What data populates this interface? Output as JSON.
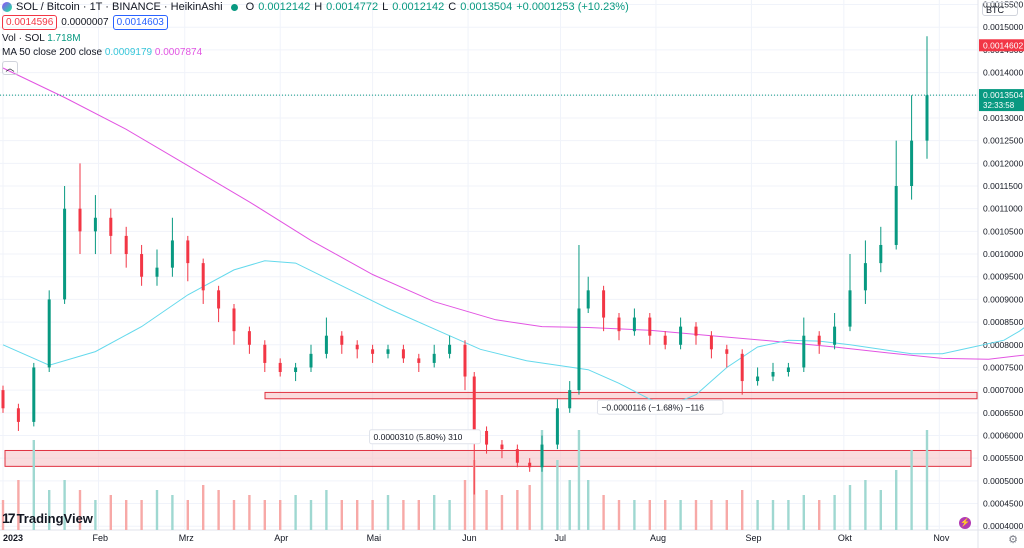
{
  "header": {
    "symbol": "SOL / Bitcoin · 1T · BINANCE · HeikinAshi",
    "O": "O",
    "o_val": "0.0012142",
    "H": "H",
    "h_val": "0.0014772",
    "L": "L",
    "l_val": "0.0012142",
    "C": "C",
    "c_val": "0.0013504",
    "change": "+0.0001253 (+10.23%)"
  },
  "quote": {
    "bid": "0.0014596",
    "spread": "0.0000007",
    "ask": "0.0014603"
  },
  "volume": {
    "label": "Vol · SOL",
    "value": "1.718M"
  },
  "ma": {
    "label": "MA 50 close 200 close",
    "ma50": "0.0009179",
    "ma200": "0.0007874"
  },
  "collapse_icon": "chevron-up-icon",
  "currency_button": "BTC",
  "logo_text": "TradingView",
  "colors": {
    "up": "#089981",
    "down": "#f23645",
    "ma50": "#64d9ec",
    "ma200": "#e254e2",
    "vol_up": "#9fd8d1",
    "vol_down": "#f7a9a7",
    "zone_fill": "#f6c3c6",
    "zone_line": "#e0303f"
  },
  "chart_data": {
    "type": "candlestick",
    "title": "SOL / Bitcoin · 1T · BINANCE · HeikinAshi",
    "y_axis": {
      "ticks": [
        "0.0015500",
        "0.0015000",
        "0.0014500",
        "0.0014000",
        "0.0013500",
        "0.0013000",
        "0.0012500",
        "0.0012000",
        "0.0011500",
        "0.0011000",
        "0.0010500",
        "0.0010000",
        "0.0009500",
        "0.0009000",
        "0.0008500",
        "0.0008000",
        "0.0007500",
        "0.0007000",
        "0.0006500",
        "0.0006000",
        "0.0005500",
        "0.0005000",
        "0.0004500",
        "0.0004000"
      ],
      "ylim": [
        0.0003917,
        0.00156
      ]
    },
    "x_axis": {
      "ticks": [
        "2023",
        "Feb",
        "Mrz",
        "Apr",
        "Mai",
        "Jun",
        "Jul",
        "Aug",
        "Sep",
        "Okt",
        "Nov"
      ],
      "xlim": [
        "2022-12-31",
        "2023-11-13"
      ]
    },
    "price_labels": [
      {
        "value": "0.0014602",
        "color": "#f23645"
      },
      {
        "value": "0.0013504",
        "sub": "32:33:58",
        "color": "#089981"
      }
    ],
    "last_price": 0.0013504,
    "ma50_points": [
      [
        0,
        0.0008
      ],
      [
        15,
        0.000755
      ],
      [
        30,
        0.000785
      ],
      [
        45,
        0.00084
      ],
      [
        60,
        0.00091
      ],
      [
        75,
        0.000965
      ],
      [
        85,
        0.000985
      ],
      [
        95,
        0.00098
      ],
      [
        110,
        0.00093
      ],
      [
        125,
        0.00088
      ],
      [
        140,
        0.000835
      ],
      [
        155,
        0.00079
      ],
      [
        170,
        0.000765
      ],
      [
        180,
        0.000755
      ],
      [
        190,
        0.000745
      ],
      [
        200,
        0.000715
      ],
      [
        210,
        0.00068
      ],
      [
        216,
        0.000665
      ],
      [
        225,
        0.00069
      ],
      [
        235,
        0.00075
      ],
      [
        245,
        0.000795
      ],
      [
        255,
        0.00081
      ],
      [
        265,
        0.000808
      ],
      [
        275,
        0.0008
      ],
      [
        285,
        0.00079
      ],
      [
        295,
        0.00078
      ],
      [
        305,
        0.00078
      ],
      [
        315,
        0.000795
      ],
      [
        325,
        0.00081
      ],
      [
        330,
        0.00083
      ],
      [
        336,
        0.00086
      ],
      [
        340,
        0.000895
      ],
      [
        344,
        0.000918
      ]
    ],
    "ma200_points": [
      [
        0,
        0.00141
      ],
      [
        20,
        0.001345
      ],
      [
        40,
        0.001275
      ],
      [
        60,
        0.001195
      ],
      [
        80,
        0.001115
      ],
      [
        100,
        0.00103
      ],
      [
        120,
        0.000955
      ],
      [
        140,
        0.000895
      ],
      [
        160,
        0.000855
      ],
      [
        175,
        0.00084
      ],
      [
        190,
        0.000838
      ],
      [
        210,
        0.000832
      ],
      [
        230,
        0.00082
      ],
      [
        250,
        0.000808
      ],
      [
        270,
        0.000795
      ],
      [
        290,
        0.00078
      ],
      [
        305,
        0.00077
      ],
      [
        320,
        0.000768
      ],
      [
        335,
        0.00078
      ],
      [
        344,
        0.000787
      ]
    ],
    "candles": [
      [
        0,
        0.0007,
        0.00066,
        0.00071,
        0.00065
      ],
      [
        5,
        0.00066,
        0.00063,
        0.00067,
        0.00061
      ],
      [
        10,
        0.00063,
        0.00075,
        0.00076,
        0.00062
      ],
      [
        15,
        0.00075,
        0.0009,
        0.00092,
        0.00074
      ],
      [
        20,
        0.0009,
        0.0011,
        0.00115,
        0.00089
      ],
      [
        25,
        0.0011,
        0.00105,
        0.0012,
        0.001
      ],
      [
        30,
        0.00105,
        0.00108,
        0.00113,
        0.001
      ],
      [
        35,
        0.00108,
        0.00104,
        0.0011,
        0.001
      ],
      [
        40,
        0.00104,
        0.001,
        0.00106,
        0.00097
      ],
      [
        45,
        0.001,
        0.00095,
        0.00102,
        0.00093
      ],
      [
        50,
        0.00095,
        0.00097,
        0.00101,
        0.00093
      ],
      [
        55,
        0.00097,
        0.00103,
        0.00108,
        0.00095
      ],
      [
        60,
        0.00103,
        0.00098,
        0.00104,
        0.00094
      ],
      [
        65,
        0.00098,
        0.00092,
        0.00099,
        0.00089
      ],
      [
        70,
        0.00092,
        0.00088,
        0.00093,
        0.00085
      ],
      [
        75,
        0.00088,
        0.00083,
        0.00089,
        0.0008
      ],
      [
        80,
        0.00083,
        0.0008,
        0.00084,
        0.00078
      ],
      [
        85,
        0.0008,
        0.00076,
        0.00081,
        0.00074
      ],
      [
        90,
        0.00076,
        0.00074,
        0.00077,
        0.00073
      ],
      [
        95,
        0.00074,
        0.00075,
        0.00076,
        0.00072
      ],
      [
        100,
        0.00075,
        0.00078,
        0.0008,
        0.00074
      ],
      [
        105,
        0.00078,
        0.00082,
        0.00086,
        0.00077
      ],
      [
        110,
        0.00082,
        0.0008,
        0.00083,
        0.00078
      ],
      [
        115,
        0.0008,
        0.00079,
        0.00081,
        0.00077
      ],
      [
        120,
        0.00079,
        0.00078,
        0.0008,
        0.00076
      ],
      [
        125,
        0.00078,
        0.00079,
        0.0008,
        0.00077
      ],
      [
        130,
        0.00079,
        0.00077,
        0.0008,
        0.00076
      ],
      [
        135,
        0.00077,
        0.00076,
        0.00078,
        0.00074
      ],
      [
        140,
        0.00076,
        0.00078,
        0.0008,
        0.00075
      ],
      [
        145,
        0.00078,
        0.0008,
        0.00082,
        0.00077
      ],
      [
        150,
        0.0008,
        0.00073,
        0.00081,
        0.0007
      ],
      [
        153,
        0.00073,
        0.00061,
        0.00074,
        0.00047
      ],
      [
        157,
        0.00061,
        0.00058,
        0.00062,
        0.00056
      ],
      [
        162,
        0.00058,
        0.00057,
        0.00059,
        0.00055
      ],
      [
        167,
        0.00057,
        0.00054,
        0.00058,
        0.00053
      ],
      [
        171,
        0.00054,
        0.00053,
        0.00055,
        0.00052
      ],
      [
        175,
        0.00053,
        0.00058,
        0.0006,
        0.00052
      ],
      [
        180,
        0.00058,
        0.00066,
        0.00068,
        0.00057
      ],
      [
        184,
        0.00066,
        0.0007,
        0.00072,
        0.00065
      ],
      [
        187,
        0.0007,
        0.00088,
        0.00102,
        0.00069
      ],
      [
        190,
        0.00088,
        0.00092,
        0.00095,
        0.00087
      ],
      [
        195,
        0.00092,
        0.00086,
        0.00093,
        0.00083
      ],
      [
        200,
        0.00086,
        0.00083,
        0.00087,
        0.00081
      ],
      [
        205,
        0.00083,
        0.00086,
        0.00088,
        0.00082
      ],
      [
        210,
        0.00086,
        0.00082,
        0.00087,
        0.0008
      ],
      [
        215,
        0.00082,
        0.0008,
        0.00083,
        0.00079
      ],
      [
        220,
        0.0008,
        0.00084,
        0.00086,
        0.00079
      ],
      [
        225,
        0.00084,
        0.00082,
        0.00085,
        0.0008
      ],
      [
        230,
        0.00082,
        0.00079,
        0.00083,
        0.00077
      ],
      [
        235,
        0.00079,
        0.00078,
        0.0008,
        0.00075
      ],
      [
        240,
        0.00078,
        0.00072,
        0.00079,
        0.00069
      ],
      [
        245,
        0.00072,
        0.00073,
        0.00075,
        0.00071
      ],
      [
        250,
        0.00073,
        0.00074,
        0.00076,
        0.00072
      ],
      [
        255,
        0.00074,
        0.00075,
        0.00076,
        0.00073
      ],
      [
        260,
        0.00075,
        0.00082,
        0.00086,
        0.00074
      ],
      [
        265,
        0.00082,
        0.0008,
        0.00083,
        0.00078
      ],
      [
        270,
        0.0008,
        0.00084,
        0.00087,
        0.00079
      ],
      [
        275,
        0.00084,
        0.00092,
        0.001,
        0.00083
      ],
      [
        280,
        0.00092,
        0.00098,
        0.00103,
        0.00089
      ],
      [
        285,
        0.00098,
        0.00102,
        0.00106,
        0.00096
      ],
      [
        290,
        0.00102,
        0.00115,
        0.00125,
        0.00101
      ],
      [
        295,
        0.00115,
        0.00125,
        0.00135,
        0.00112
      ],
      [
        300,
        0.00125,
        0.00135,
        0.00148,
        0.00121
      ]
    ],
    "volume": [
      [
        0,
        0.3
      ],
      [
        5,
        0.5
      ],
      [
        10,
        0.9
      ],
      [
        15,
        0.4
      ],
      [
        20,
        0.5
      ],
      [
        25,
        0.4
      ],
      [
        30,
        0.3
      ],
      [
        35,
        0.35
      ],
      [
        40,
        0.3
      ],
      [
        45,
        0.3
      ],
      [
        50,
        0.4
      ],
      [
        55,
        0.35
      ],
      [
        60,
        0.3
      ],
      [
        65,
        0.45
      ],
      [
        70,
        0.4
      ],
      [
        75,
        0.3
      ],
      [
        80,
        0.35
      ],
      [
        85,
        0.3
      ],
      [
        90,
        0.3
      ],
      [
        95,
        0.35
      ],
      [
        100,
        0.3
      ],
      [
        105,
        0.4
      ],
      [
        110,
        0.3
      ],
      [
        115,
        0.3
      ],
      [
        120,
        0.3
      ],
      [
        125,
        0.35
      ],
      [
        130,
        0.3
      ],
      [
        135,
        0.3
      ],
      [
        140,
        0.35
      ],
      [
        145,
        0.3
      ],
      [
        150,
        0.5
      ],
      [
        153,
        0.7
      ],
      [
        157,
        0.4
      ],
      [
        162,
        0.35
      ],
      [
        167,
        0.4
      ],
      [
        171,
        0.45
      ],
      [
        175,
        1.0
      ],
      [
        180,
        0.7
      ],
      [
        184,
        0.5
      ],
      [
        187,
        1.0
      ],
      [
        190,
        0.5
      ],
      [
        195,
        0.35
      ],
      [
        200,
        0.3
      ],
      [
        205,
        0.3
      ],
      [
        210,
        0.3
      ],
      [
        215,
        0.3
      ],
      [
        220,
        0.3
      ],
      [
        225,
        0.3
      ],
      [
        230,
        0.3
      ],
      [
        235,
        0.3
      ],
      [
        240,
        0.4
      ],
      [
        245,
        0.3
      ],
      [
        250,
        0.3
      ],
      [
        255,
        0.3
      ],
      [
        260,
        0.35
      ],
      [
        265,
        0.3
      ],
      [
        270,
        0.35
      ],
      [
        275,
        0.45
      ],
      [
        280,
        0.5
      ],
      [
        285,
        0.4
      ],
      [
        290,
        0.6
      ],
      [
        295,
        0.8
      ],
      [
        300,
        1.0
      ]
    ],
    "zones": [
      {
        "top": 0.000695,
        "bottom": 0.000681
      },
      {
        "top": 0.000567,
        "bottom": 0.000532
      }
    ],
    "annotations": [
      {
        "text": "−0.0000116 (−1.68%) −116",
        "x": 193,
        "y": 0.00066
      },
      {
        "text": "0.0000310 (5.80%) 310",
        "x": 119,
        "y": 0.000595
      }
    ]
  }
}
